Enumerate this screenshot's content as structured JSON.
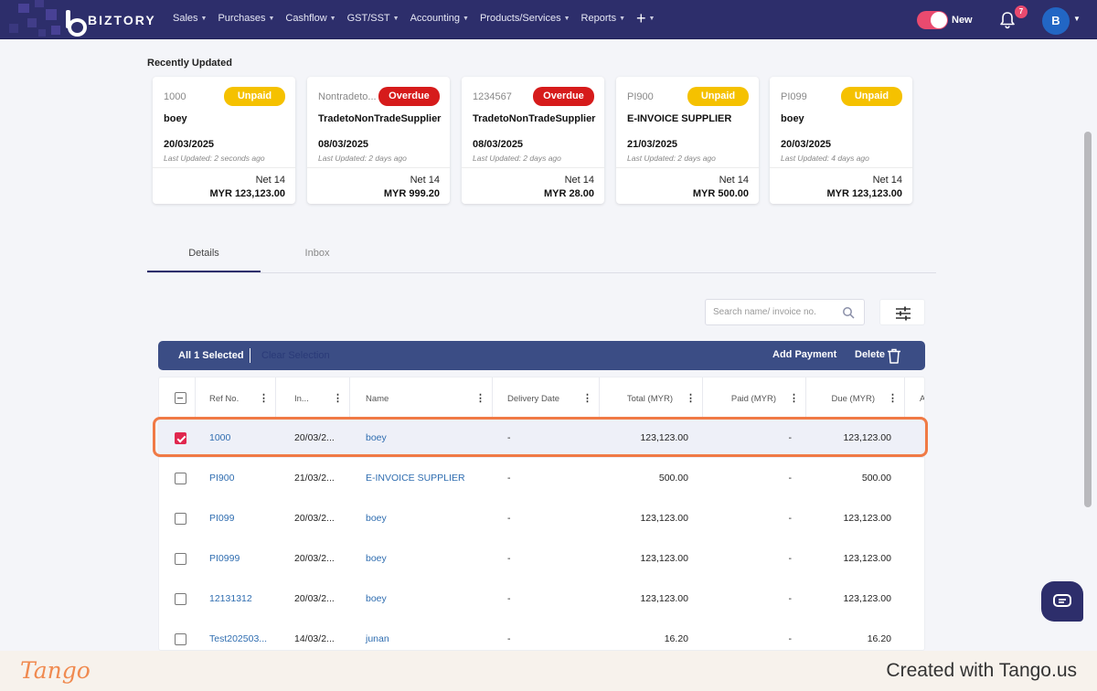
{
  "nav": {
    "brand": "BIZTORY",
    "menu": [
      {
        "label": "Sales"
      },
      {
        "label": "Purchases"
      },
      {
        "label": "Cashflow"
      },
      {
        "label": "GST/SST"
      },
      {
        "label": "Accounting"
      },
      {
        "label": "Products/Services"
      },
      {
        "label": "Reports"
      }
    ],
    "toggle_label": "New",
    "notification_count": "7",
    "avatar_initial": "B"
  },
  "recent": {
    "title": "Recently Updated",
    "cards": [
      {
        "ref": "1000",
        "status": "Unpaid",
        "name": "boey",
        "date": "20/03/2025",
        "updated": "Last Updated: 2 seconds ago",
        "terms": "Net 14",
        "amount": "MYR 123,123.00"
      },
      {
        "ref": "Nontradeto...",
        "status": "Overdue",
        "name": "TradetoNonTradeSupplier",
        "date": "08/03/2025",
        "updated": "Last Updated: 2 days ago",
        "terms": "Net 14",
        "amount": "MYR 999.20"
      },
      {
        "ref": "1234567",
        "status": "Overdue",
        "name": "TradetoNonTradeSupplier",
        "date": "08/03/2025",
        "updated": "Last Updated: 2 days ago",
        "terms": "Net 14",
        "amount": "MYR 28.00"
      },
      {
        "ref": "PI900",
        "status": "Unpaid",
        "name": "E-INVOICE SUPPLIER",
        "date": "21/03/2025",
        "updated": "Last Updated: 2 days ago",
        "terms": "Net 14",
        "amount": "MYR 500.00"
      },
      {
        "ref": "PI099",
        "status": "Unpaid",
        "name": "boey",
        "date": "20/03/2025",
        "updated": "Last Updated: 4 days ago",
        "terms": "Net 14",
        "amount": "MYR 123,123.00"
      }
    ]
  },
  "tabs": [
    {
      "label": "Details"
    },
    {
      "label": "Inbox"
    }
  ],
  "search": {
    "placeholder": "Search name/ invoice no."
  },
  "action_bar": {
    "selected_text": "All 1 Selected",
    "clear_text": "Clear Selection",
    "add_payment": "Add Payment",
    "delete": "Delete"
  },
  "table": {
    "headers": [
      "Ref No.",
      "In...",
      "Name",
      "Delivery Date",
      "Total (MYR)",
      "Paid (MYR)",
      "Due (MYR)",
      "A"
    ],
    "rows": [
      {
        "ref": "1000",
        "date": "20/03/2...",
        "name": "boey",
        "delivery": "-",
        "total": "123,123.00",
        "paid": "-",
        "due": "123,123.00",
        "checked": true
      },
      {
        "ref": "PI900",
        "date": "21/03/2...",
        "name": "E-INVOICE SUPPLIER",
        "delivery": "-",
        "total": "500.00",
        "paid": "-",
        "due": "500.00",
        "checked": false
      },
      {
        "ref": "PI099",
        "date": "20/03/2...",
        "name": "boey",
        "delivery": "-",
        "total": "123,123.00",
        "paid": "-",
        "due": "123,123.00",
        "checked": false
      },
      {
        "ref": "PI0999",
        "date": "20/03/2...",
        "name": "boey",
        "delivery": "-",
        "total": "123,123.00",
        "paid": "-",
        "due": "123,123.00",
        "checked": false
      },
      {
        "ref": "12131312",
        "date": "20/03/2...",
        "name": "boey",
        "delivery": "-",
        "total": "123,123.00",
        "paid": "-",
        "due": "123,123.00",
        "checked": false
      },
      {
        "ref": "Test202503...",
        "date": "14/03/2...",
        "name": "junan",
        "delivery": "-",
        "total": "16.20",
        "paid": "-",
        "due": "16.20",
        "checked": false
      }
    ]
  },
  "footer": {
    "logo": "Tango",
    "credit": "Created with Tango.us"
  },
  "colors": {
    "nav_bg": "#2d2e6b",
    "unpaid": "#f5c100",
    "overdue": "#d61b1b",
    "accent_pink": "#e94a6f",
    "highlight": "#f07a45",
    "action_bar": "#3b4d85"
  }
}
